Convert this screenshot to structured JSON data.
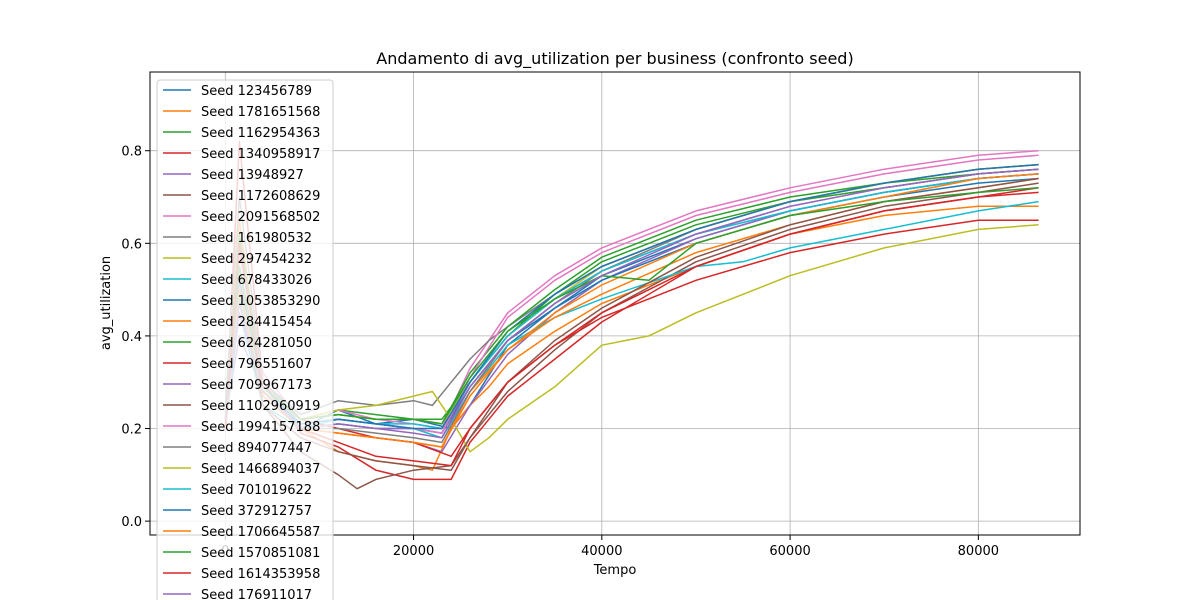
{
  "chart_data": {
    "type": "line",
    "title": "Andamento di avg_utilization per business (confronto seed)",
    "xlabel": "Tempo",
    "ylabel": "avg_utilization",
    "xlim": [
      -8000,
      90800
    ],
    "ylim": [
      -0.03,
      0.97
    ],
    "xticks": [
      0,
      20000,
      40000,
      60000,
      80000
    ],
    "xtick_labels": [
      "0",
      "20000",
      "40000",
      "60000",
      "80000"
    ],
    "yticks": [
      0.0,
      0.2,
      0.4,
      0.6,
      0.8
    ],
    "ytick_labels": [
      "0.0",
      "0.2",
      "0.4",
      "0.6",
      "0.8"
    ],
    "grid": true,
    "legend_position": "upper-left",
    "series": [
      {
        "name": "Seed 123456789",
        "color": "#1f77b4",
        "x": [
          0,
          1500,
          4000,
          8000,
          12000,
          16000,
          20000,
          24000,
          26000,
          30000,
          35000,
          40000,
          50000,
          60000,
          70000,
          80000,
          86400
        ],
        "y": [
          0.2,
          0.5,
          0.3,
          0.2,
          0.24,
          0.21,
          0.22,
          0.2,
          0.25,
          0.38,
          0.46,
          0.53,
          0.61,
          0.67,
          0.71,
          0.74,
          0.75
        ]
      },
      {
        "name": "Seed 1781651568",
        "color": "#ff7f0e",
        "x": [
          0,
          1500,
          4000,
          8000,
          12000,
          16000,
          20000,
          22000,
          24000,
          26000,
          28000,
          30000,
          35000,
          40000,
          50000,
          60000,
          70000,
          80000,
          86400
        ],
        "y": [
          0.22,
          0.65,
          0.28,
          0.2,
          0.15,
          0.13,
          0.12,
          0.11,
          0.2,
          0.25,
          0.29,
          0.34,
          0.41,
          0.47,
          0.55,
          0.62,
          0.66,
          0.68,
          0.68
        ]
      },
      {
        "name": "Seed 1162954363",
        "color": "#2ca02c",
        "x": [
          0,
          1500,
          4000,
          8000,
          12000,
          16000,
          20000,
          23000,
          26000,
          30000,
          35000,
          40000,
          50000,
          60000,
          70000,
          80000,
          86400
        ],
        "y": [
          0.25,
          0.45,
          0.3,
          0.22,
          0.24,
          0.23,
          0.22,
          0.22,
          0.3,
          0.4,
          0.49,
          0.56,
          0.64,
          0.69,
          0.72,
          0.75,
          0.76
        ]
      },
      {
        "name": "Seed 1340958917",
        "color": "#d62728",
        "x": [
          0,
          1500,
          4000,
          8000,
          12000,
          16000,
          20000,
          24000,
          26000,
          28000,
          30000,
          35000,
          40000,
          50000,
          60000,
          70000,
          80000,
          86400
        ],
        "y": [
          0.2,
          0.82,
          0.3,
          0.19,
          0.16,
          0.11,
          0.09,
          0.09,
          0.17,
          0.22,
          0.27,
          0.35,
          0.43,
          0.55,
          0.62,
          0.67,
          0.7,
          0.72
        ]
      },
      {
        "name": "Seed 13948927",
        "color": "#9467bd",
        "x": [
          0,
          1500,
          4000,
          8000,
          12000,
          16000,
          20000,
          23000,
          26000,
          30000,
          35000,
          40000,
          50000,
          60000,
          70000,
          80000,
          86400
        ],
        "y": [
          0.22,
          0.4,
          0.28,
          0.2,
          0.19,
          0.18,
          0.17,
          0.15,
          0.25,
          0.36,
          0.45,
          0.52,
          0.61,
          0.67,
          0.71,
          0.74,
          0.75
        ]
      },
      {
        "name": "Seed 1172608629",
        "color": "#8c564b",
        "x": [
          0,
          1500,
          4000,
          8000,
          12000,
          14000,
          16000,
          20000,
          24000,
          26000,
          30000,
          35000,
          40000,
          50000,
          60000,
          70000,
          80000,
          86400
        ],
        "y": [
          0.2,
          0.55,
          0.25,
          0.15,
          0.1,
          0.07,
          0.09,
          0.11,
          0.12,
          0.18,
          0.28,
          0.37,
          0.45,
          0.56,
          0.63,
          0.68,
          0.71,
          0.73
        ]
      },
      {
        "name": "Seed 2091568502",
        "color": "#e377c2",
        "x": [
          0,
          1500,
          4000,
          8000,
          12000,
          16000,
          20000,
          23000,
          26000,
          30000,
          35000,
          40000,
          50000,
          60000,
          70000,
          80000,
          86400
        ],
        "y": [
          0.2,
          0.6,
          0.32,
          0.22,
          0.24,
          0.22,
          0.21,
          0.2,
          0.33,
          0.45,
          0.53,
          0.59,
          0.67,
          0.72,
          0.76,
          0.79,
          0.8
        ]
      },
      {
        "name": "Seed 161980532",
        "color": "#7f7f7f",
        "x": [
          0,
          1500,
          4000,
          8000,
          12000,
          16000,
          20000,
          22000,
          24000,
          26000,
          28000,
          30000,
          35000,
          40000,
          50000,
          60000,
          70000,
          80000,
          86400
        ],
        "y": [
          0.25,
          0.7,
          0.3,
          0.23,
          0.26,
          0.25,
          0.26,
          0.25,
          0.3,
          0.35,
          0.39,
          0.42,
          0.49,
          0.55,
          0.63,
          0.69,
          0.73,
          0.76,
          0.77
        ]
      },
      {
        "name": "Seed 297454232",
        "color": "#bcbd22",
        "x": [
          0,
          1500,
          4000,
          8000,
          12000,
          16000,
          20000,
          22000,
          24000,
          26000,
          28000,
          30000,
          35000,
          40000,
          45000,
          50000,
          60000,
          70000,
          80000,
          86400
        ],
        "y": [
          0.22,
          0.5,
          0.28,
          0.22,
          0.24,
          0.25,
          0.27,
          0.28,
          0.22,
          0.15,
          0.18,
          0.22,
          0.29,
          0.38,
          0.4,
          0.45,
          0.53,
          0.59,
          0.63,
          0.64
        ]
      },
      {
        "name": "Seed 678433026",
        "color": "#17becf",
        "x": [
          0,
          1500,
          4000,
          8000,
          12000,
          16000,
          20000,
          23000,
          26000,
          30000,
          35000,
          40000,
          50000,
          55000,
          60000,
          70000,
          80000,
          86400
        ],
        "y": [
          0.2,
          0.45,
          0.25,
          0.2,
          0.21,
          0.2,
          0.2,
          0.18,
          0.28,
          0.38,
          0.44,
          0.48,
          0.55,
          0.56,
          0.59,
          0.63,
          0.67,
          0.69
        ]
      },
      {
        "name": "Seed 1053853290",
        "color": "#1f77b4",
        "x": [
          0,
          1500,
          4000,
          8000,
          12000,
          16000,
          20000,
          23000,
          26000,
          30000,
          35000,
          40000,
          50000,
          60000,
          70000,
          80000,
          86400
        ],
        "y": [
          0.22,
          0.5,
          0.28,
          0.21,
          0.22,
          0.21,
          0.2,
          0.19,
          0.29,
          0.39,
          0.46,
          0.52,
          0.6,
          0.66,
          0.7,
          0.73,
          0.74
        ]
      },
      {
        "name": "Seed 284415454",
        "color": "#ff7f0e",
        "x": [
          0,
          1500,
          4000,
          8000,
          12000,
          16000,
          20000,
          23000,
          26000,
          30000,
          35000,
          40000,
          50000,
          60000,
          70000,
          80000,
          86400
        ],
        "y": [
          0.2,
          0.55,
          0.27,
          0.2,
          0.19,
          0.18,
          0.17,
          0.16,
          0.28,
          0.37,
          0.44,
          0.49,
          0.58,
          0.64,
          0.69,
          0.72,
          0.74
        ]
      },
      {
        "name": "Seed 624281050",
        "color": "#2ca02c",
        "x": [
          0,
          1500,
          4000,
          8000,
          12000,
          16000,
          20000,
          23000,
          26000,
          30000,
          35000,
          40000,
          50000,
          60000,
          70000,
          80000,
          86400
        ],
        "y": [
          0.22,
          0.62,
          0.3,
          0.22,
          0.23,
          0.22,
          0.22,
          0.21,
          0.32,
          0.42,
          0.5,
          0.57,
          0.65,
          0.7,
          0.73,
          0.75,
          0.76
        ]
      },
      {
        "name": "Seed 796551607",
        "color": "#d62728",
        "x": [
          0,
          1500,
          4000,
          8000,
          12000,
          16000,
          20000,
          24000,
          26000,
          28000,
          30000,
          35000,
          40000,
          50000,
          60000,
          70000,
          80000,
          86400
        ],
        "y": [
          0.2,
          0.5,
          0.28,
          0.22,
          0.2,
          0.18,
          0.17,
          0.14,
          0.2,
          0.25,
          0.3,
          0.38,
          0.44,
          0.52,
          0.58,
          0.62,
          0.65,
          0.65
        ]
      },
      {
        "name": "Seed 709967173",
        "color": "#9467bd",
        "x": [
          0,
          1500,
          4000,
          8000,
          12000,
          16000,
          20000,
          23000,
          26000,
          30000,
          35000,
          40000,
          50000,
          60000,
          70000,
          80000,
          86400
        ],
        "y": [
          0.22,
          0.45,
          0.28,
          0.2,
          0.21,
          0.2,
          0.2,
          0.19,
          0.3,
          0.4,
          0.48,
          0.54,
          0.62,
          0.68,
          0.72,
          0.75,
          0.76
        ]
      },
      {
        "name": "Seed 1102960919",
        "color": "#8c564b",
        "x": [
          0,
          1500,
          4000,
          8000,
          12000,
          16000,
          20000,
          24000,
          26000,
          30000,
          35000,
          40000,
          50000,
          60000,
          70000,
          80000,
          86400
        ],
        "y": [
          0.2,
          0.48,
          0.25,
          0.18,
          0.15,
          0.13,
          0.12,
          0.11,
          0.18,
          0.3,
          0.39,
          0.46,
          0.57,
          0.64,
          0.69,
          0.72,
          0.74
        ]
      },
      {
        "name": "Seed 1994157188",
        "color": "#e377c2",
        "x": [
          0,
          1500,
          4000,
          8000,
          12000,
          16000,
          20000,
          23000,
          26000,
          30000,
          35000,
          40000,
          50000,
          60000,
          70000,
          80000,
          86400
        ],
        "y": [
          0.22,
          0.58,
          0.3,
          0.21,
          0.22,
          0.21,
          0.2,
          0.19,
          0.31,
          0.44,
          0.52,
          0.58,
          0.66,
          0.71,
          0.75,
          0.78,
          0.79
        ]
      },
      {
        "name": "Seed 894077447",
        "color": "#7f7f7f",
        "x": [
          0,
          1500,
          4000,
          8000,
          12000,
          16000,
          20000,
          23000,
          26000,
          30000,
          35000,
          40000,
          50000,
          60000,
          70000,
          80000,
          86400
        ],
        "y": [
          0.2,
          0.52,
          0.27,
          0.2,
          0.2,
          0.19,
          0.18,
          0.17,
          0.28,
          0.39,
          0.47,
          0.54,
          0.63,
          0.69,
          0.73,
          0.76,
          0.77
        ]
      },
      {
        "name": "Seed 1466894037",
        "color": "#bcbd22",
        "x": [
          0,
          1500,
          4000,
          8000,
          12000,
          16000,
          20000,
          23000,
          26000,
          30000,
          35000,
          40000,
          50000,
          60000,
          70000,
          80000,
          86400
        ],
        "y": [
          0.22,
          0.5,
          0.28,
          0.22,
          0.23,
          0.22,
          0.22,
          0.21,
          0.3,
          0.4,
          0.48,
          0.55,
          0.63,
          0.69,
          0.73,
          0.76,
          0.77
        ]
      },
      {
        "name": "Seed 701019622",
        "color": "#17becf",
        "x": [
          0,
          1500,
          4000,
          8000,
          12000,
          16000,
          20000,
          23000,
          26000,
          30000,
          35000,
          40000,
          50000,
          60000,
          70000,
          80000,
          86400
        ],
        "y": [
          0.2,
          0.48,
          0.27,
          0.2,
          0.22,
          0.21,
          0.21,
          0.2,
          0.3,
          0.4,
          0.48,
          0.54,
          0.62,
          0.67,
          0.71,
          0.74,
          0.75
        ]
      },
      {
        "name": "Seed 372912757",
        "color": "#1f77b4",
        "x": [
          0,
          1500,
          4000,
          8000,
          12000,
          16000,
          20000,
          23000,
          26000,
          30000,
          35000,
          40000,
          50000,
          60000,
          70000,
          80000,
          86400
        ],
        "y": [
          0.22,
          0.52,
          0.29,
          0.21,
          0.22,
          0.21,
          0.2,
          0.2,
          0.3,
          0.41,
          0.49,
          0.55,
          0.63,
          0.69,
          0.73,
          0.76,
          0.77
        ]
      },
      {
        "name": "Seed 1706645587",
        "color": "#ff7f0e",
        "x": [
          0,
          1500,
          4000,
          8000,
          12000,
          16000,
          20000,
          23000,
          26000,
          30000,
          35000,
          40000,
          50000,
          60000,
          70000,
          80000,
          86400
        ],
        "y": [
          0.2,
          0.5,
          0.27,
          0.2,
          0.19,
          0.18,
          0.17,
          0.16,
          0.27,
          0.37,
          0.45,
          0.51,
          0.6,
          0.66,
          0.7,
          0.74,
          0.75
        ]
      },
      {
        "name": "Seed 1570851081",
        "color": "#2ca02c",
        "x": [
          0,
          1500,
          4000,
          8000,
          12000,
          16000,
          20000,
          23000,
          26000,
          30000,
          35000,
          40000,
          45000,
          50000,
          60000,
          70000,
          80000,
          86400
        ],
        "y": [
          0.22,
          0.55,
          0.29,
          0.22,
          0.23,
          0.22,
          0.22,
          0.21,
          0.31,
          0.41,
          0.48,
          0.53,
          0.52,
          0.6,
          0.66,
          0.69,
          0.71,
          0.72
        ]
      },
      {
        "name": "Seed 1614353958",
        "color": "#d62728",
        "x": [
          0,
          1500,
          4000,
          8000,
          12000,
          16000,
          20000,
          24000,
          26000,
          28000,
          30000,
          35000,
          40000,
          50000,
          60000,
          70000,
          80000,
          86400
        ],
        "y": [
          0.2,
          0.6,
          0.28,
          0.2,
          0.17,
          0.14,
          0.13,
          0.12,
          0.2,
          0.25,
          0.3,
          0.38,
          0.45,
          0.55,
          0.62,
          0.67,
          0.7,
          0.71
        ]
      },
      {
        "name": "Seed 176911017",
        "color": "#9467bd",
        "x": [
          0,
          1500,
          4000,
          8000,
          12000,
          16000,
          20000,
          23000,
          26000,
          30000,
          35000,
          40000,
          50000,
          60000,
          70000,
          80000,
          86400
        ],
        "y": [
          0.22,
          0.47,
          0.28,
          0.2,
          0.21,
          0.2,
          0.19,
          0.18,
          0.29,
          0.39,
          0.47,
          0.53,
          0.62,
          0.68,
          0.72,
          0.75,
          0.76
        ]
      }
    ]
  }
}
